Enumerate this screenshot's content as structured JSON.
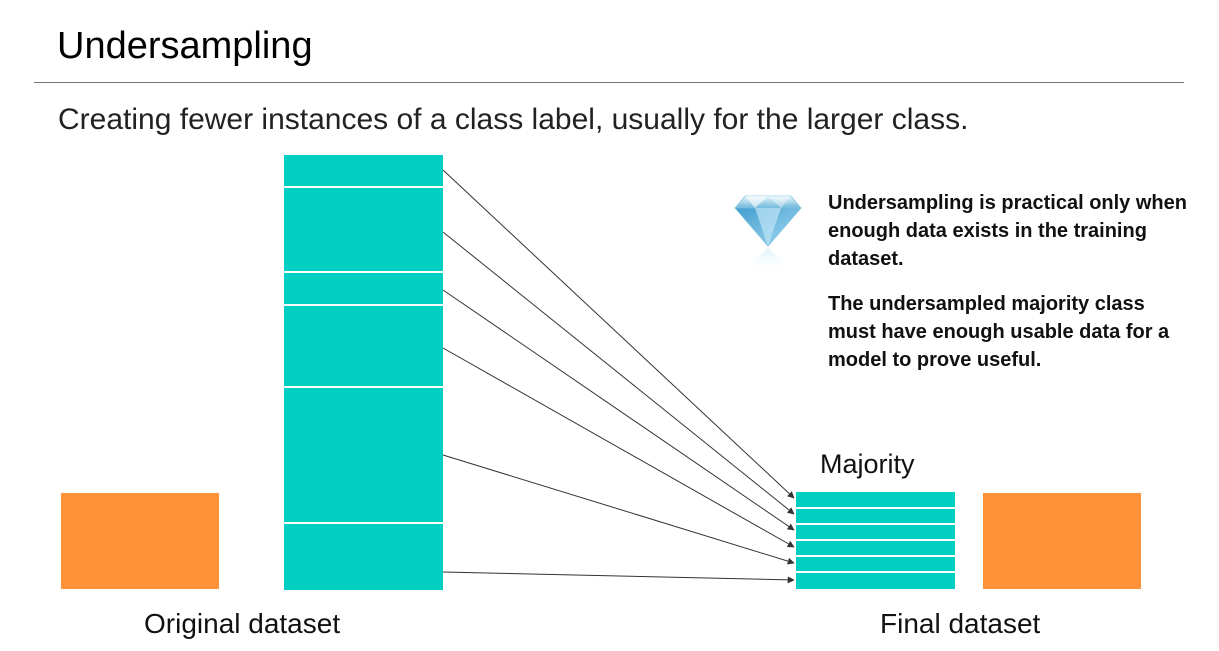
{
  "title": "Undersampling",
  "subtitle": "Creating fewer instances of a class label, usually for the larger class.",
  "labels": {
    "original": "Original dataset",
    "final": "Final dataset",
    "majority": "Majority"
  },
  "notes": {
    "note1": "Undersampling is practical only when enough data exists in the training dataset.",
    "note2": "The undersampled majority class must have enough usable data for a model to prove useful."
  },
  "colors": {
    "minority": "#FF9137",
    "majority": "#00CFC1"
  },
  "icons": {
    "gem": "diamond-icon"
  }
}
